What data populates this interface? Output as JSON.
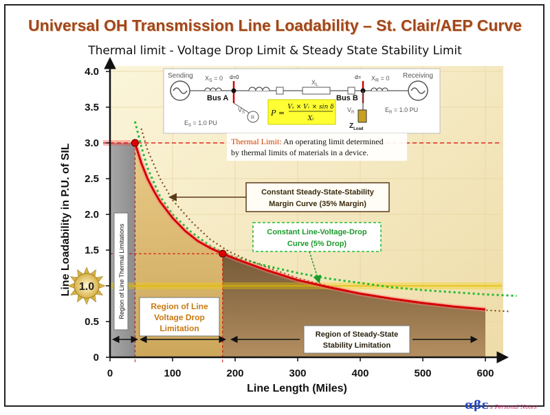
{
  "title": "Universal  OH Transmission Line Loadability – St. Clair/AEP Curve",
  "subtitle": "Thermal limit  - Voltage Drop Limit  & Steady State Stability  Limit",
  "colors": {
    "thermal_curve": "#d40000",
    "stability_curve": "#7a4a1a",
    "voltage_drop_curve": "#22bb33",
    "background": "#f3e6bb",
    "title": "#a0461c"
  },
  "chart_data": {
    "type": "line",
    "xlabel": "Line Length (Miles)",
    "ylabel": "Line Loadability in P.U. of SIL",
    "xlim": [
      0,
      630
    ],
    "ylim": [
      0,
      4.0
    ],
    "x_ticks": [
      "0",
      "100",
      "200",
      "300",
      "400",
      "500",
      "600"
    ],
    "y_ticks": [
      "0",
      "0.5",
      "1.0",
      "1.5",
      "2.0",
      "2.5",
      "3.0",
      "3.5",
      "4.0"
    ],
    "series": [
      {
        "key": "loadability",
        "x": [
          40,
          50,
          60,
          70,
          80,
          100,
          120,
          140,
          160,
          180,
          200,
          250,
          300,
          350,
          400,
          450,
          500,
          550,
          600
        ],
        "y": [
          3.0,
          2.72,
          2.5,
          2.33,
          2.18,
          1.95,
          1.77,
          1.63,
          1.53,
          1.45,
          1.38,
          1.22,
          1.08,
          0.98,
          0.89,
          0.82,
          0.76,
          0.71,
          0.67
        ]
      },
      {
        "key": "stability_extension",
        "x": [
          50,
          60,
          80,
          100,
          130,
          160,
          190,
          220,
          260,
          300,
          350,
          400,
          450,
          500,
          550,
          600,
          640
        ],
        "y": [
          3.2,
          2.9,
          2.5,
          2.2,
          1.9,
          1.65,
          1.48,
          1.36,
          1.23,
          1.11,
          0.99,
          0.89,
          0.81,
          0.75,
          0.7,
          0.66,
          0.64
        ]
      },
      {
        "key": "voltage_drop",
        "x": [
          40,
          50,
          60,
          80,
          100,
          130,
          160,
          180,
          200,
          250,
          300,
          350,
          400,
          450,
          500,
          550,
          600,
          650
        ],
        "y": [
          3.3,
          2.95,
          2.65,
          2.25,
          2.0,
          1.75,
          1.56,
          1.47,
          1.4,
          1.28,
          1.18,
          1.1,
          1.04,
          0.98,
          0.94,
          0.91,
          0.88,
          0.86
        ]
      }
    ],
    "key_points": [
      {
        "x": 40,
        "y": 3.0
      },
      {
        "x": 180,
        "y": 1.45
      }
    ],
    "sil_marker": "1.0",
    "annotations": {
      "thermal_limit_label": "Thermal Limit:",
      "thermal_limit_text": " An operating limit determined by thermal limits of materials in a device.",
      "stability_margin": "Constant Steady-State-Stability Margin Curve (35% Margin)",
      "voltage_drop_curve": "Constant Line-Voltage-Drop Curve (5% Drop)",
      "region_thermal": "Region of Line Thermal Limitations",
      "region_voltage": "Region  of Line Voltage Drop Limitation",
      "region_stability": "Region  of Steady-State Stability  Limitation"
    }
  },
  "diagram": {
    "sending": "Sending",
    "receiving": "Receiving",
    "xs_left": "X",
    "xs_left_sub": "S",
    "xs_left_val": " = 0",
    "xs_right": "X",
    "xs_right_sub": "R",
    "xs_right_val": " = 0",
    "xl": "X",
    "xl_sub": "L",
    "d0": "d=0",
    "dd": "d=",
    "bus_a": "Bus A",
    "bus_b": "Bus B",
    "vs": "V",
    "vs_sub": "S",
    "vr": "V",
    "vr_sub": "R",
    "r": "R",
    "es": "E",
    "es_sub": "S",
    "es_val": " = 1.0 PU",
    "er": "E",
    "er_sub": "R",
    "er_val": " = 1.0 PU",
    "zload": "Z",
    "zload_sub": "Load",
    "formula_lhs": "P = ",
    "formula_num": "Vₛ × Vᵣ × sin δ",
    "formula_den": "Xₗ"
  },
  "footer": {
    "alpha": "αβε",
    "text": "'s Personal Notes"
  }
}
